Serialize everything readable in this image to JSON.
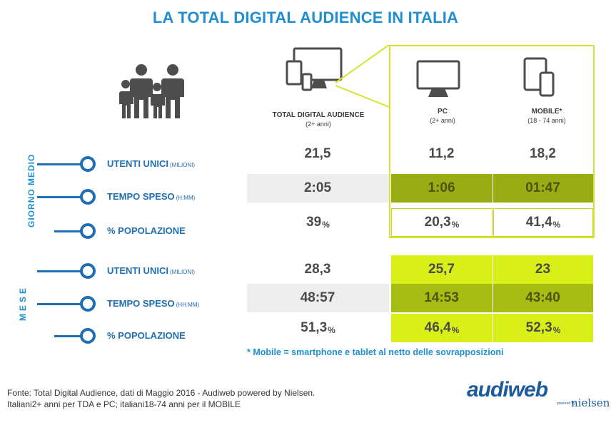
{
  "title": "LA TOTAL DIGITAL AUDIENCE IN ITALIA",
  "columns": [
    {
      "label": "TOTAL DIGITAL AUDIENCE",
      "sub": "(2+ anni)"
    },
    {
      "label": "PC",
      "sub": "(2+ anni)"
    },
    {
      "label": "MOBILE*",
      "sub": "(18 - 74 anni)"
    }
  ],
  "groups": [
    {
      "label": "GIORNO MEDIO"
    },
    {
      "label": "MESE"
    }
  ],
  "rows": [
    {
      "label": "UTENTI UNICI",
      "unit": "(MILIONI)",
      "total": "21,5",
      "pc": "11,2",
      "mobile": "18,2",
      "suffix": ""
    },
    {
      "label": "TEMPO SPESO",
      "unit": "(H:MM)",
      "total": "2:05",
      "pc": "1:06",
      "mobile": "01:47",
      "suffix": ""
    },
    {
      "label": "% POPOLAZIONE",
      "unit": "",
      "total": "39",
      "pc": "20,3",
      "mobile": "41,4",
      "suffix": "%"
    },
    {
      "label": "UTENTI UNICI",
      "unit": "(MILIONI)",
      "total": "28,3",
      "pc": "25,7",
      "mobile": "23",
      "suffix": ""
    },
    {
      "label": "TEMPO SPESO",
      "unit": "(HH:MM)",
      "total": "48:57",
      "pc": "14:53",
      "mobile": "43:40",
      "suffix": ""
    },
    {
      "label": "% POPOLAZIONE",
      "unit": "",
      "total": "51,3",
      "pc": "46,4",
      "mobile": "52,3",
      "suffix": "%"
    }
  ],
  "footnote": "* Mobile = smartphone e tablet al netto delle sovrapposizioni",
  "source_line1": "Fonte: Total Digital Audience, dati di Maggio 2016 - Audiweb powered by Nielsen.",
  "source_line2": "Italiani2+ anni per TDA e PC; italiani18-74 anni per il MOBILE",
  "logo": {
    "audiweb": "audiweb",
    "powered": "powered by",
    "nielsen": "nielsen"
  },
  "colors": {
    "title": "#1f8fd1",
    "label": "#1f6fb2",
    "lime": "#d8ef18",
    "olive": "#9aac14",
    "frame": "#d7e32e"
  },
  "icons": [
    "family-icon",
    "devices-icon",
    "monitor-icon",
    "mobile-devices-icon"
  ],
  "chart_data": {
    "type": "table",
    "title": "LA TOTAL DIGITAL AUDIENCE IN ITALIA",
    "columns": [
      "TOTAL DIGITAL AUDIENCE (2+ anni)",
      "PC (2+ anni)",
      "MOBILE* (18 - 74 anni)"
    ],
    "row_groups": [
      {
        "group": "GIORNO MEDIO",
        "rows": [
          {
            "metric": "UTENTI UNICI (MILIONI)",
            "values": [
              21.5,
              11.2,
              18.2
            ]
          },
          {
            "metric": "TEMPO SPESO (H:MM)",
            "values": [
              "2:05",
              "1:06",
              "01:47"
            ]
          },
          {
            "metric": "% POPOLAZIONE",
            "values": [
              39,
              20.3,
              41.4
            ]
          }
        ]
      },
      {
        "group": "MESE",
        "rows": [
          {
            "metric": "UTENTI UNICI (MILIONI)",
            "values": [
              28.3,
              25.7,
              23
            ]
          },
          {
            "metric": "TEMPO SPESO (HH:MM)",
            "values": [
              "48:57",
              "14:53",
              "43:40"
            ]
          },
          {
            "metric": "% POPOLAZIONE",
            "values": [
              51.3,
              46.4,
              52.3
            ]
          }
        ]
      }
    ]
  }
}
